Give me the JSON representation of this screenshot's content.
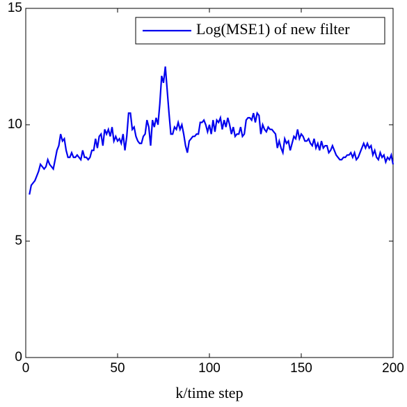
{
  "chart_data": {
    "type": "line",
    "x_label": "k/time step",
    "x": [
      2,
      3,
      4,
      5,
      6,
      7,
      8,
      9,
      10,
      11,
      12,
      13,
      14,
      15,
      16,
      17,
      18,
      19,
      20,
      21,
      22,
      23,
      24,
      25,
      26,
      27,
      28,
      29,
      30,
      31,
      32,
      33,
      34,
      35,
      36,
      37,
      38,
      39,
      40,
      41,
      42,
      43,
      44,
      45,
      46,
      47,
      48,
      49,
      50,
      51,
      52,
      53,
      54,
      55,
      56,
      57,
      58,
      59,
      60,
      61,
      62,
      63,
      64,
      65,
      66,
      67,
      68,
      69,
      70,
      71,
      72,
      73,
      74,
      75,
      76,
      77,
      78,
      79,
      80,
      81,
      82,
      83,
      84,
      85,
      86,
      87,
      88,
      89,
      90,
      91,
      92,
      93,
      94,
      95,
      96,
      97,
      98,
      99,
      100,
      101,
      102,
      103,
      104,
      105,
      106,
      107,
      108,
      109,
      110,
      111,
      112,
      113,
      114,
      115,
      116,
      117,
      118,
      119,
      120,
      121,
      122,
      123,
      124,
      125,
      126,
      127,
      128,
      129,
      130,
      131,
      132,
      133,
      134,
      135,
      136,
      137,
      138,
      139,
      140,
      141,
      142,
      143,
      144,
      145,
      146,
      147,
      148,
      149,
      150,
      151,
      152,
      153,
      154,
      155,
      156,
      157,
      158,
      159,
      160,
      161,
      162,
      163,
      164,
      165,
      166,
      167,
      168,
      169,
      170,
      171,
      172,
      173,
      174,
      175,
      176,
      177,
      178,
      179,
      180,
      181,
      182,
      183,
      184,
      185,
      186,
      187,
      188,
      189,
      190,
      191,
      192,
      193,
      194,
      195,
      196,
      197,
      198,
      199,
      200
    ],
    "series": [
      {
        "name": "Log(MSE1) of new filter",
        "color": "#0000ee",
        "values": [
          7.0,
          7.4,
          7.5,
          7.6,
          7.8,
          8.0,
          8.3,
          8.2,
          8.1,
          8.2,
          8.5,
          8.3,
          8.2,
          8.1,
          8.5,
          8.9,
          9.1,
          9.6,
          9.3,
          9.4,
          8.9,
          8.6,
          8.6,
          8.8,
          8.6,
          8.6,
          8.7,
          8.6,
          8.5,
          8.9,
          8.6,
          8.6,
          8.5,
          8.6,
          8.9,
          8.9,
          9.4,
          9.0,
          9.5,
          9.6,
          9.1,
          9.8,
          9.6,
          9.8,
          9.5,
          9.9,
          9.3,
          9.5,
          9.3,
          9.4,
          9.2,
          9.6,
          8.9,
          9.5,
          10.5,
          10.5,
          9.8,
          9.9,
          9.5,
          9.3,
          9.2,
          9.2,
          9.5,
          9.6,
          10.2,
          9.9,
          9.1,
          10.2,
          9.9,
          10.3,
          10.0,
          10.9,
          12.1,
          11.8,
          12.5,
          11.5,
          10.5,
          9.6,
          9.6,
          9.9,
          9.8,
          10.1,
          9.8,
          10.0,
          9.6,
          9.1,
          8.8,
          9.3,
          9.4,
          9.5,
          9.5,
          9.6,
          9.6,
          10.1,
          10.1,
          10.2,
          10.0,
          9.7,
          10.0,
          9.6,
          10.2,
          9.7,
          10.2,
          10.1,
          10.3,
          9.8,
          10.2,
          9.9,
          10.3,
          10.0,
          9.6,
          9.9,
          9.5,
          9.6,
          9.6,
          9.9,
          9.5,
          9.6,
          10.2,
          10.3,
          10.3,
          10.2,
          10.5,
          10.1,
          10.5,
          10.4,
          9.6,
          10.0,
          9.8,
          9.7,
          9.9,
          9.8,
          9.8,
          9.7,
          9.6,
          9.0,
          9.3,
          9.0,
          8.8,
          9.4,
          9.2,
          9.3,
          8.9,
          9.2,
          9.5,
          9.4,
          9.8,
          9.4,
          9.6,
          9.5,
          9.3,
          9.3,
          9.4,
          9.2,
          9.1,
          9.4,
          9.0,
          9.2,
          8.9,
          9.3,
          9.0,
          9.1,
          9.1,
          8.8,
          8.9,
          9.1,
          8.9,
          8.7,
          8.6,
          8.5,
          8.5,
          8.6,
          8.6,
          8.7,
          8.7,
          8.8,
          8.6,
          8.8,
          8.5,
          8.6,
          8.8,
          9.0,
          9.2,
          9.0,
          9.2,
          9.0,
          9.1,
          8.7,
          8.9,
          8.6,
          8.5,
          8.8,
          8.6,
          8.7,
          8.4,
          8.6,
          8.5,
          8.7,
          8.3
        ]
      }
    ],
    "xlim": [
      0,
      200
    ],
    "xticks": [
      0,
      50,
      100,
      150,
      200
    ],
    "ylim": [
      0,
      15
    ],
    "yticks": [
      0,
      5,
      10,
      15
    ],
    "grid": false,
    "legend": "upper right"
  }
}
